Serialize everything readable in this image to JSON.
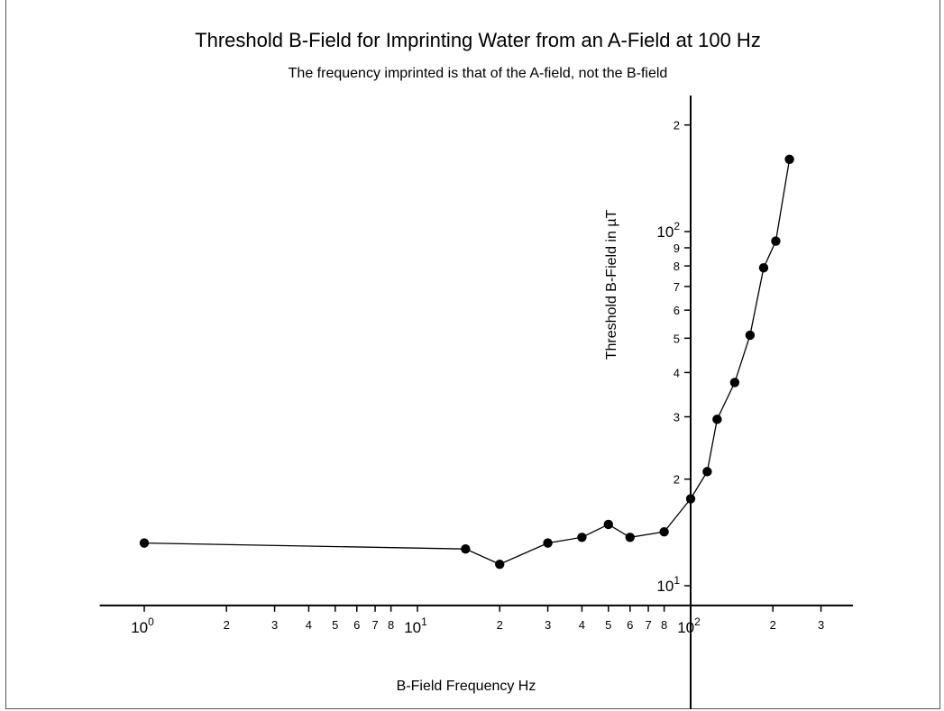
{
  "chart_data": {
    "type": "line",
    "title": "Threshold B-Field for Imprinting Water from an A-Field at 100 Hz",
    "subtitle": "The frequency imprinted is that of the A-field, not the B-field",
    "xlabel": "B-Field Frequency Hz",
    "ylabel": "Threshold B-Field  in µT",
    "x_scale": "log",
    "y_scale": "log",
    "xlim": [
      0.85,
      400
    ],
    "ylim": [
      8.8,
      240
    ],
    "x_axis_crosses_y_at": 8.8,
    "y_axis_crosses_x_at": 100,
    "x_ticks": [
      {
        "value": 1,
        "base": "10",
        "exp": "0"
      },
      {
        "value": 2,
        "label": "2"
      },
      {
        "value": 3,
        "label": "3"
      },
      {
        "value": 4,
        "label": "4"
      },
      {
        "value": 5,
        "label": "5"
      },
      {
        "value": 6,
        "label": "6"
      },
      {
        "value": 7,
        "label": "7"
      },
      {
        "value": 8,
        "label": "8"
      },
      {
        "value": 10,
        "base": "10",
        "exp": "1"
      },
      {
        "value": 20,
        "label": "2"
      },
      {
        "value": 30,
        "label": "3"
      },
      {
        "value": 40,
        "label": "4"
      },
      {
        "value": 50,
        "label": "5"
      },
      {
        "value": 60,
        "label": "6"
      },
      {
        "value": 70,
        "label": "7"
      },
      {
        "value": 80,
        "label": "8"
      },
      {
        "value": 100,
        "base": "10",
        "exp": "2"
      },
      {
        "value": 200,
        "label": "2"
      },
      {
        "value": 300,
        "label": "3"
      }
    ],
    "y_ticks": [
      {
        "value": 10,
        "base": "10",
        "exp": "1"
      },
      {
        "value": 20,
        "label": "2"
      },
      {
        "value": 30,
        "label": "3"
      },
      {
        "value": 40,
        "label": "4"
      },
      {
        "value": 50,
        "label": "5"
      },
      {
        "value": 60,
        "label": "6"
      },
      {
        "value": 70,
        "label": "7"
      },
      {
        "value": 80,
        "label": "8"
      },
      {
        "value": 90,
        "label": "9"
      },
      {
        "value": 100,
        "base": "10",
        "exp": "2"
      },
      {
        "value": 200,
        "label": "2"
      }
    ],
    "series": [
      {
        "marker": "circle",
        "color": "#000000",
        "x": [
          1,
          15,
          20,
          30,
          40,
          50,
          60,
          80,
          100,
          115,
          125,
          145,
          165,
          185,
          205,
          230
        ],
        "y": [
          13.2,
          12.7,
          11.5,
          13.2,
          13.7,
          14.9,
          13.7,
          14.2,
          17.6,
          21,
          29.5,
          37.5,
          51,
          79,
          94,
          160
        ]
      }
    ]
  }
}
